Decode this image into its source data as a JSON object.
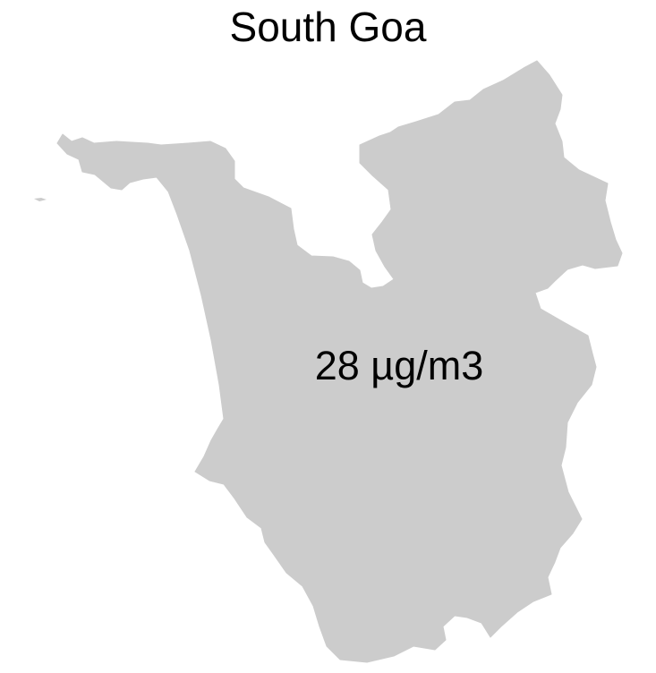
{
  "map": {
    "title": "South Goa",
    "region": {
      "name": "South Goa",
      "value_label": "28 µg/m3",
      "fill_color": "#cccccc"
    }
  }
}
